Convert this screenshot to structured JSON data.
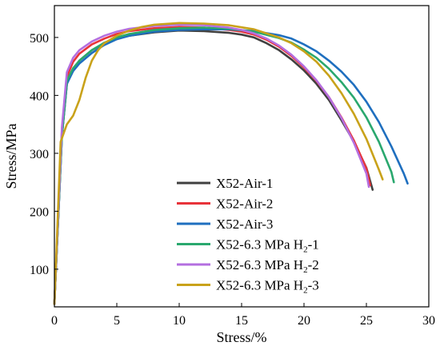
{
  "chart_data": {
    "type": "line",
    "title": "",
    "xlabel": "Stress/%",
    "ylabel": "Stress/MPa",
    "xlim": [
      0,
      30
    ],
    "ylim": [
      35,
      555
    ],
    "xticks": [
      0,
      5,
      10,
      15,
      20,
      25,
      30
    ],
    "yticks": [
      100,
      200,
      300,
      400,
      500
    ],
    "grid": false,
    "legend_position": "lower-left",
    "series": [
      {
        "name": "X52-Air-1",
        "label_main": "X52-Air-1",
        "label_sub": "",
        "label_tail": "",
        "color": "#404040",
        "x": [
          0,
          0.6,
          1.0,
          1.5,
          2,
          3,
          4,
          5,
          6,
          8,
          10,
          12,
          14,
          15,
          16,
          17,
          18,
          19,
          20,
          21,
          22,
          23,
          24,
          25,
          25.5
        ],
        "y": [
          40,
          330,
          420,
          445,
          460,
          478,
          490,
          498,
          503,
          509,
          512,
          511,
          508,
          505,
          500,
          490,
          478,
          462,
          443,
          420,
          392,
          357,
          320,
          275,
          237
        ]
      },
      {
        "name": "X52-Air-2",
        "label_main": "X52-Air-2",
        "label_sub": "",
        "label_tail": "",
        "color": "#e8333a",
        "x": [
          0,
          0.6,
          1.0,
          1.5,
          2,
          3,
          4,
          5,
          6,
          8,
          10,
          12,
          14,
          15,
          16,
          17,
          18,
          19,
          20,
          21,
          22,
          23,
          24,
          25,
          25.3
        ],
        "y": [
          40,
          340,
          432,
          458,
          472,
          488,
          498,
          506,
          511,
          516,
          518,
          517,
          513,
          510,
          505,
          496,
          484,
          468,
          448,
          425,
          397,
          362,
          322,
          274,
          245
        ]
      },
      {
        "name": "X52-Air-3",
        "label_main": "X52-Air-3",
        "label_sub": "",
        "label_tail": "",
        "color": "#1f6fbf",
        "x": [
          0,
          0.6,
          1.0,
          1.5,
          2,
          3,
          4,
          5,
          6,
          8,
          10,
          12,
          14,
          16,
          18,
          19,
          20,
          21,
          22,
          23,
          24,
          25,
          26,
          27,
          28,
          28.3
        ],
        "y": [
          40,
          330,
          420,
          442,
          455,
          473,
          487,
          497,
          503,
          510,
          513,
          514,
          514,
          511,
          504,
          498,
          488,
          476,
          460,
          441,
          418,
          389,
          354,
          312,
          265,
          248
        ]
      },
      {
        "name": "X52-6.3 MPa H2-1",
        "label_main": "X52-6.3 MPa H",
        "label_sub": "2",
        "label_tail": "-1",
        "color": "#2aa86e",
        "x": [
          0,
          0.6,
          1.0,
          1.5,
          2,
          3,
          4,
          5,
          6,
          8,
          10,
          12,
          14,
          16,
          18,
          19,
          20,
          21,
          22,
          23,
          24,
          25,
          26,
          27,
          27.2
        ],
        "y": [
          40,
          330,
          425,
          447,
          460,
          478,
          491,
          500,
          506,
          513,
          516,
          517,
          515,
          510,
          499,
          491,
          479,
          465,
          446,
          423,
          396,
          362,
          320,
          268,
          250
        ]
      },
      {
        "name": "X52-6.3 MPa H2-2",
        "label_main": "X52-6.3 MPa H",
        "label_sub": "2",
        "label_tail": "-2",
        "color": "#b46fe0",
        "x": [
          0,
          0.6,
          1.0,
          1.5,
          2,
          3,
          4,
          5,
          6,
          8,
          10,
          12,
          14,
          15,
          16,
          17,
          18,
          19,
          20,
          21,
          22,
          23,
          24,
          25,
          25.2
        ],
        "y": [
          40,
          345,
          440,
          465,
          478,
          493,
          503,
          510,
          515,
          520,
          522,
          521,
          517,
          513,
          507,
          498,
          486,
          470,
          450,
          426,
          397,
          361,
          318,
          265,
          242
        ]
      },
      {
        "name": "X52-6.3 MPa H2-3",
        "label_main": "X52-6.3 MPa H",
        "label_sub": "2",
        "label_tail": "-3",
        "color": "#c9a21a",
        "x": [
          0,
          0.5,
          1.0,
          1.5,
          2.0,
          2.5,
          3.0,
          3.5,
          4,
          5,
          6,
          7,
          8,
          10,
          12,
          14,
          16,
          18,
          19,
          20,
          21,
          22,
          23,
          24,
          25,
          26,
          26.3
        ],
        "y": [
          40,
          320,
          350,
          365,
          392,
          430,
          460,
          478,
          490,
          503,
          512,
          518,
          522,
          525,
          524,
          521,
          514,
          500,
          490,
          476,
          458,
          434,
          404,
          368,
          325,
          272,
          255
        ]
      }
    ]
  }
}
